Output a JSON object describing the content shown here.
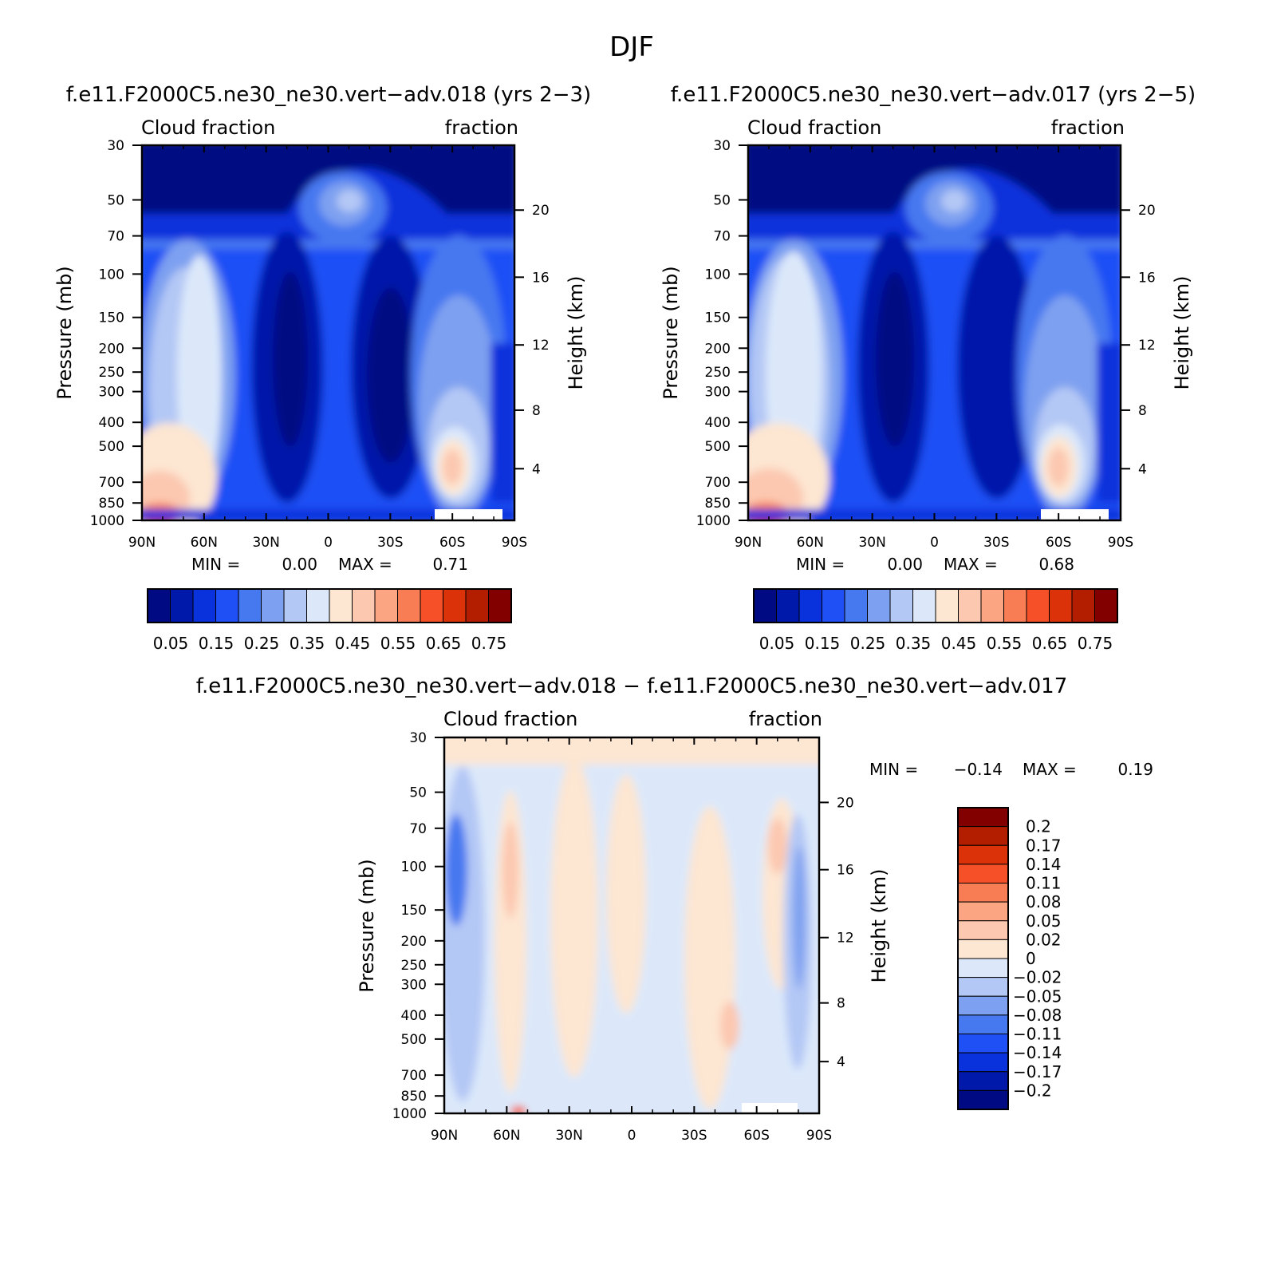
{
  "title": "DJF",
  "panels": [
    {
      "id": "p1",
      "title": "f.e11.F2000C5.ne30_ne30.vert−adv.018 (yrs 2−3)",
      "left_label": "Cloud fraction",
      "right_label": "fraction",
      "ylabel": "Pressure (mb)",
      "ylabel_right": "Height (km)",
      "min_label": "MIN =",
      "min_value": "0.00",
      "max_label": "MAX =",
      "max_value": "0.71"
    },
    {
      "id": "p2",
      "title": "f.e11.F2000C5.ne30_ne30.vert−adv.017 (yrs 2−5)",
      "left_label": "Cloud fraction",
      "right_label": "fraction",
      "ylabel": "Pressure (mb)",
      "ylabel_right": "Height (km)",
      "min_label": "MIN =",
      "min_value": "0.00",
      "max_label": "MAX =",
      "max_value": "0.68"
    },
    {
      "id": "p3",
      "title": "f.e11.F2000C5.ne30_ne30.vert−adv.018 − f.e11.F2000C5.ne30_ne30.vert−adv.017",
      "left_label": "Cloud fraction",
      "right_label": "fraction",
      "ylabel": "Pressure (mb)",
      "ylabel_right": "Height (km)",
      "min_label": "MIN =",
      "min_value": "−0.14",
      "max_label": "MAX =",
      "max_value": "0.19"
    }
  ],
  "chart_data": [
    {
      "type": "heatmap",
      "title": "f.e11.F2000C5.ne30_ne30.vert−adv.018 (yrs 2−3)",
      "variable": "Cloud fraction",
      "season": "DJF",
      "x_ticks": [
        "90N",
        "60N",
        "30N",
        "0",
        "30S",
        "60S",
        "90S"
      ],
      "y_ticks": [
        "30",
        "50",
        "70",
        "100",
        "150",
        "200",
        "250",
        "300",
        "400",
        "500",
        "700",
        "850",
        "1000"
      ],
      "y_ticks_right": [
        "20",
        "16",
        "12",
        "8",
        "4"
      ],
      "ylabel": "Pressure (mb)",
      "ylabel_right": "Height (km)",
      "ylim": [
        30,
        1000
      ],
      "y_scale": "log",
      "min": 0.0,
      "max": 0.71,
      "colorbar_labels": [
        "0.05",
        "0.15",
        "0.25",
        "0.35",
        "0.45",
        "0.55",
        "0.65",
        "0.75"
      ]
    },
    {
      "type": "heatmap",
      "title": "f.e11.F2000C5.ne30_ne30.vert−adv.017 (yrs 2−5)",
      "variable": "Cloud fraction",
      "season": "DJF",
      "x_ticks": [
        "90N",
        "60N",
        "30N",
        "0",
        "30S",
        "60S",
        "90S"
      ],
      "y_ticks": [
        "30",
        "50",
        "70",
        "100",
        "150",
        "200",
        "250",
        "300",
        "400",
        "500",
        "700",
        "850",
        "1000"
      ],
      "y_ticks_right": [
        "20",
        "16",
        "12",
        "8",
        "4"
      ],
      "ylabel": "Pressure (mb)",
      "ylabel_right": "Height (km)",
      "ylim": [
        30,
        1000
      ],
      "y_scale": "log",
      "min": 0.0,
      "max": 0.68,
      "colorbar_labels": [
        "0.05",
        "0.15",
        "0.25",
        "0.35",
        "0.45",
        "0.55",
        "0.65",
        "0.75"
      ]
    },
    {
      "type": "heatmap",
      "title": "f.e11.F2000C5.ne30_ne30.vert−adv.018 − f.e11.F2000C5.ne30_ne30.vert−adv.017",
      "variable": "Cloud fraction",
      "season": "DJF",
      "x_ticks": [
        "90N",
        "60N",
        "30N",
        "0",
        "30S",
        "60S",
        "90S"
      ],
      "y_ticks": [
        "30",
        "50",
        "70",
        "100",
        "150",
        "200",
        "250",
        "300",
        "400",
        "500",
        "700",
        "850",
        "1000"
      ],
      "y_ticks_right": [
        "20",
        "16",
        "12",
        "8",
        "4"
      ],
      "ylabel": "Pressure (mb)",
      "ylabel_right": "Height (km)",
      "ylim": [
        30,
        1000
      ],
      "y_scale": "log",
      "min": -0.14,
      "max": 0.19,
      "colorbar_labels": [
        "0.2",
        "0.17",
        "0.14",
        "0.11",
        "0.08",
        "0.05",
        "0.02",
        "0",
        "−0.02",
        "−0.05",
        "−0.08",
        "−0.11",
        "−0.14",
        "−0.17",
        "−0.2"
      ]
    }
  ],
  "colors": {
    "seq": [
      "#000a82",
      "#0019aa",
      "#0a32dc",
      "#1e50f5",
      "#4678f0",
      "#7ea0f0",
      "#b4c8f5",
      "#dce8fa",
      "#fde6d2",
      "#fcc8b0",
      "#fba582",
      "#f87d55",
      "#f55028",
      "#dc320a",
      "#b41e00",
      "#820000"
    ],
    "diff": [
      "#000a82",
      "#0019aa",
      "#0a32dc",
      "#1e50f5",
      "#4678f0",
      "#7ea0f0",
      "#b4c8f5",
      "#dce8fa",
      "#fde6d2",
      "#fcc8b0",
      "#fba582",
      "#f87d55",
      "#f55028",
      "#dc320a",
      "#b41e00",
      "#820000"
    ]
  }
}
